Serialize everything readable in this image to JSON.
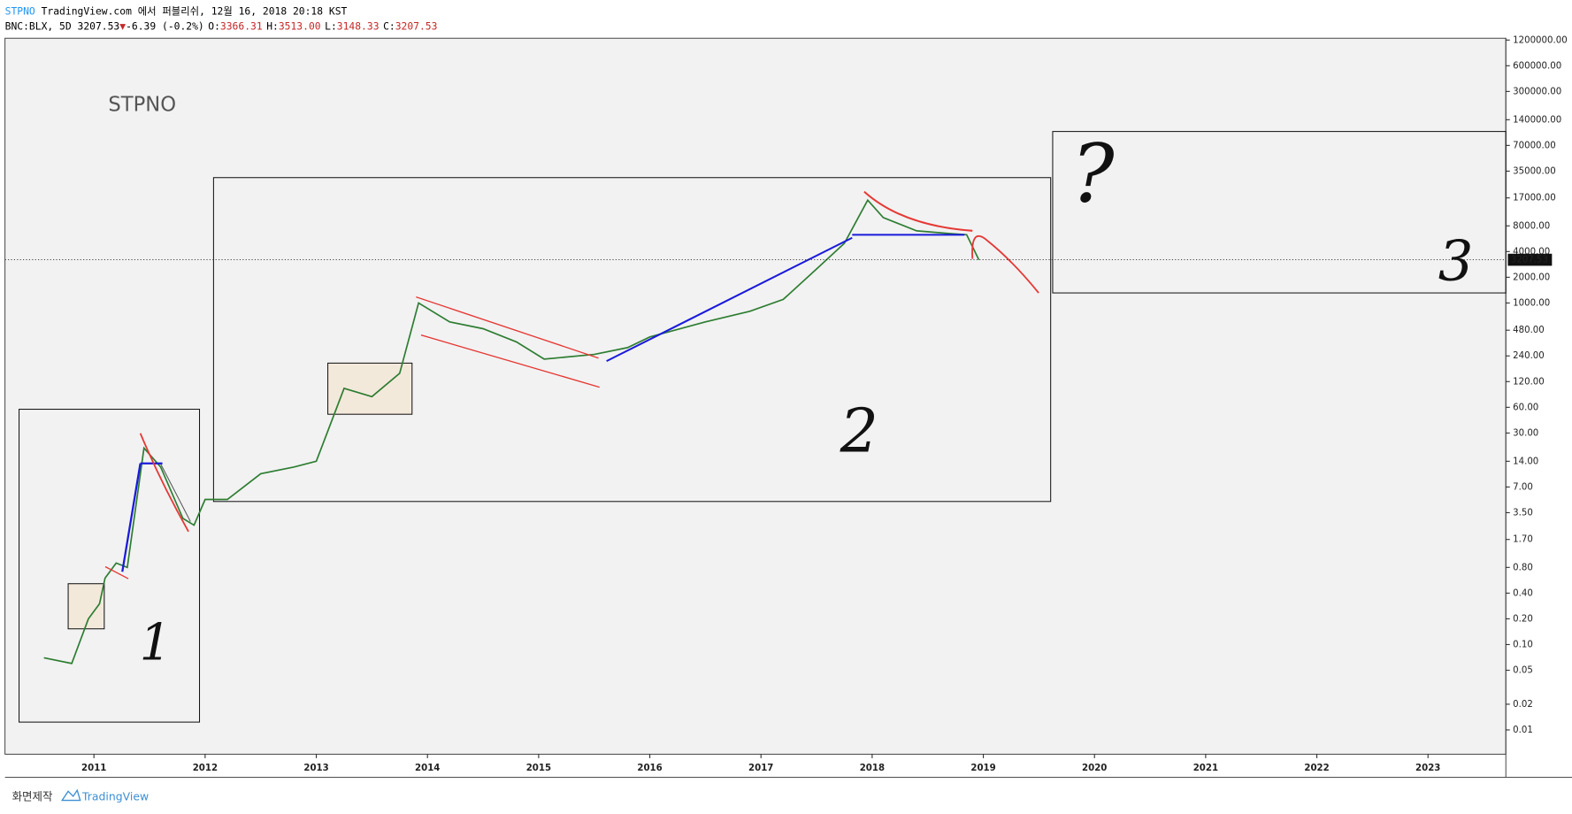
{
  "header": {
    "brand": "STPNO",
    "published": "TradingView.com 에서 퍼블리쉬, 12월 16, 2018 20:18 KST",
    "symbol": "BNC:BLX, 5D 3207.53",
    "change": "-6.39 (-0.2%)",
    "ohlc": [
      {
        "key": "O:",
        "value": "3366.31"
      },
      {
        "key": "H:",
        "value": "3513.00"
      },
      {
        "key": "L:",
        "value": "3148.33"
      },
      {
        "key": "C:",
        "value": "3207.53"
      }
    ]
  },
  "chart_data": {
    "type": "line",
    "title": "STPNO",
    "log_scale": true,
    "grid": false,
    "annotations": [
      "1",
      "2",
      "3",
      "?"
    ],
    "xlim": [
      2010.2,
      2023.7
    ],
    "xticks": [
      2011,
      2012,
      2013,
      2014,
      2015,
      2016,
      2017,
      2018,
      2019,
      2020,
      2021,
      2022,
      2023
    ],
    "ylim": [
      0.0052,
      1260000
    ],
    "yticks": [
      0.01,
      0.02,
      0.05,
      {
        "value": 0.1,
        "label": "0.10"
      },
      {
        "value": 0.2,
        "label": "0.20"
      },
      {
        "value": 0.4,
        "label": "0.40"
      },
      {
        "value": 0.8,
        "label": "0.80"
      },
      {
        "value": 1.7,
        "label": "1.70"
      },
      {
        "value": 3.5,
        "label": "3.50"
      },
      {
        "value": 7,
        "label": "7.00"
      },
      {
        "value": 14,
        "label": "14.00"
      },
      {
        "value": 30,
        "label": "30.00"
      },
      {
        "value": 60,
        "label": "60.00"
      },
      {
        "value": 120,
        "label": "120.00"
      },
      {
        "value": 240,
        "label": "240.00"
      },
      {
        "value": 480,
        "label": "480.00"
      },
      {
        "value": 1000,
        "label": "1000.00"
      },
      {
        "value": 2000,
        "label": "2000.00"
      },
      {
        "value": 4000,
        "label": "4000.00"
      },
      {
        "value": 8000,
        "label": "8000.00"
      },
      {
        "value": 17000,
        "label": "17000.00"
      },
      {
        "value": 35000,
        "label": "35000.00"
      },
      {
        "value": 70000,
        "label": "70000.00"
      },
      {
        "value": 140000,
        "label": "140000.00"
      },
      {
        "value": 300000,
        "label": "300000.00"
      },
      {
        "value": 600000,
        "label": "600000.00"
      },
      {
        "value": 1200000,
        "label": "1200000.00"
      }
    ],
    "series": [
      {
        "name": "BNC:BLX",
        "color": "#2e7d32",
        "x": [
          2010.55,
          2010.8,
          2010.95,
          2011.05,
          2011.1,
          2011.2,
          2011.3,
          2011.45,
          2011.6,
          2011.8,
          2011.9,
          2012.0,
          2012.2,
          2012.5,
          2012.8,
          2013.0,
          2013.25,
          2013.5,
          2013.75,
          2013.92,
          2014.2,
          2014.5,
          2014.8,
          2015.05,
          2015.5,
          2015.8,
          2016.0,
          2016.5,
          2016.9,
          2017.2,
          2017.5,
          2017.75,
          2017.96,
          2018.1,
          2018.4,
          2018.7,
          2018.85,
          2018.96
        ],
        "values": [
          0.07,
          0.06,
          0.2,
          0.3,
          0.6,
          0.9,
          0.8,
          20,
          12,
          3,
          2.5,
          5,
          5,
          10,
          12,
          14,
          100,
          80,
          150,
          1000,
          600,
          500,
          350,
          220,
          250,
          300,
          400,
          600,
          800,
          1100,
          2500,
          5000,
          16000,
          10000,
          7000,
          6500,
          6300,
          3207.53
        ]
      }
    ]
  },
  "footer": {
    "made": "화면제작",
    "brand": "TradingView"
  }
}
